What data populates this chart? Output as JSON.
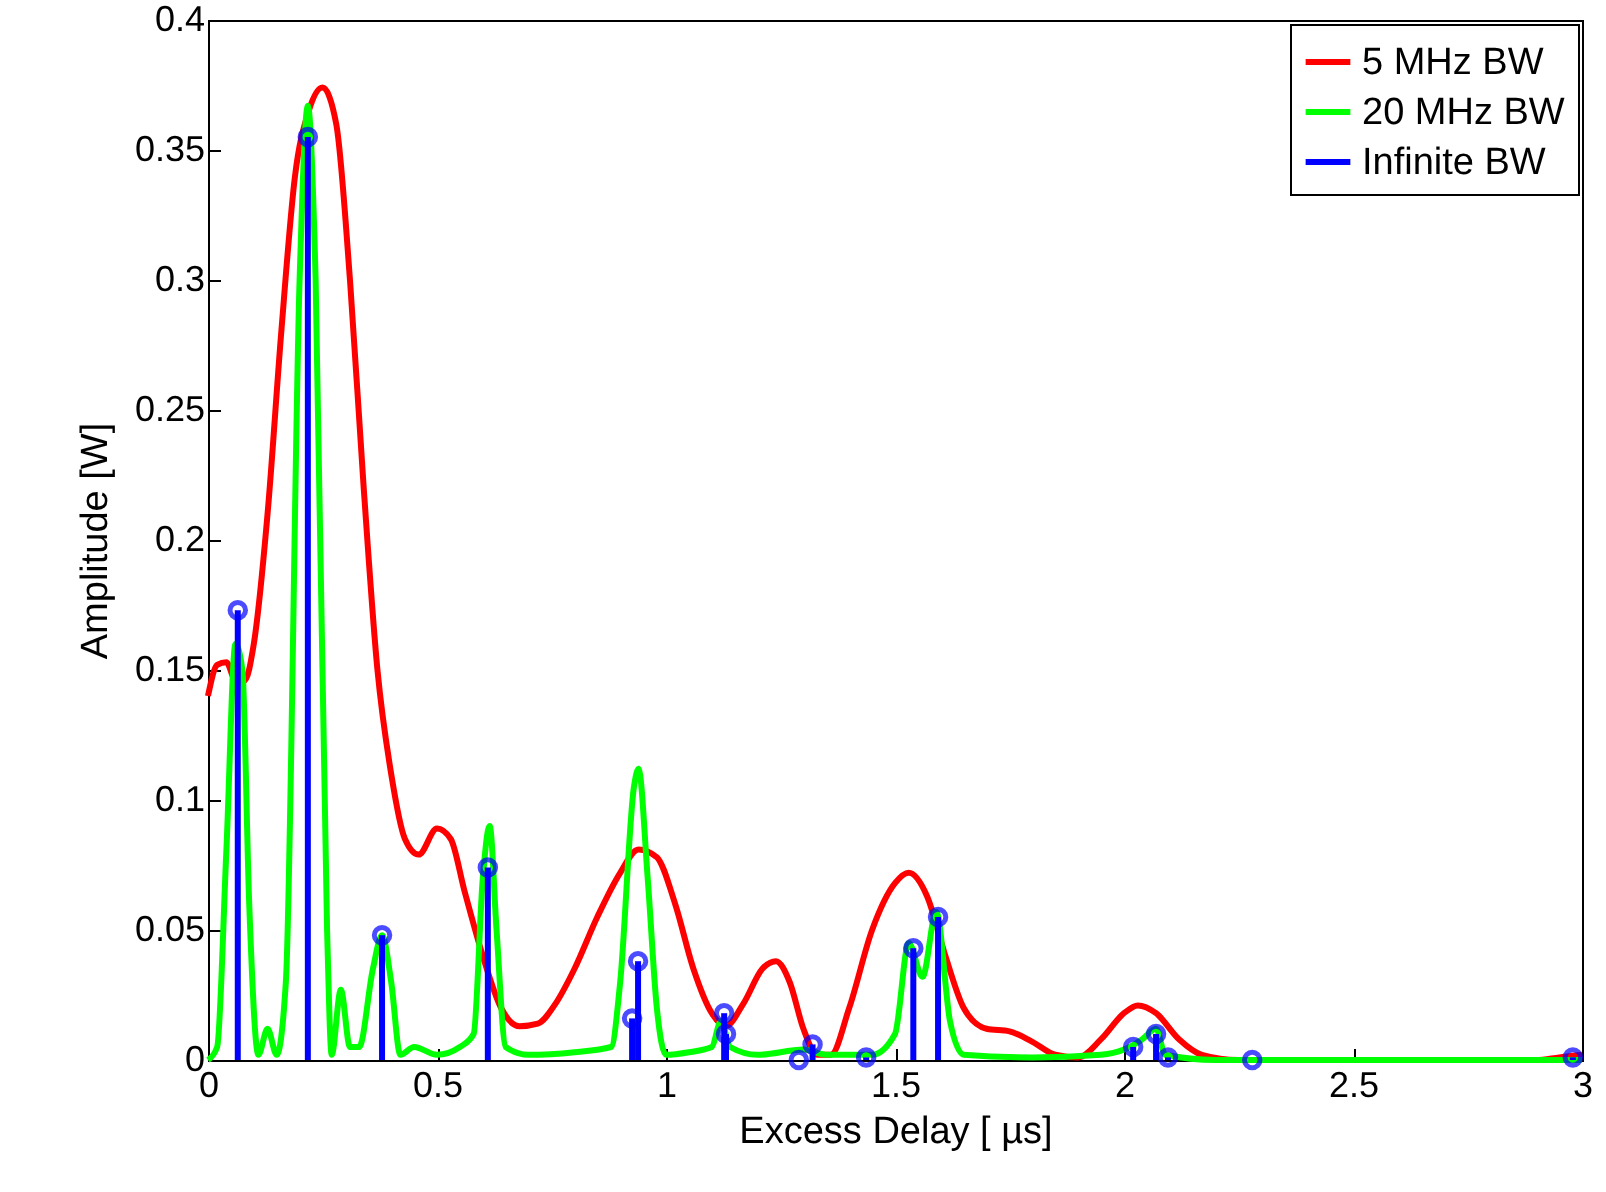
{
  "chart_data": {
    "type": "line",
    "xlabel": "Excess Delay  [ µs]",
    "ylabel": "Amplitude  [W]",
    "xlim": [
      0,
      3
    ],
    "xticks": [
      0,
      0.5,
      1,
      1.5,
      2,
      2.5,
      3
    ],
    "ylim": [
      0,
      0.4
    ],
    "yticks": [
      0,
      0.05,
      0.1,
      0.15,
      0.2,
      0.25,
      0.3,
      0.35,
      0.4
    ],
    "grid": false,
    "legend": "top right",
    "series": [
      {
        "name": "5 MHz BW",
        "color": "#ff0000",
        "x": [
          0,
          0.02,
          0.04,
          0.06,
          0.08,
          0.1,
          0.13,
          0.16,
          0.19,
          0.22,
          0.25,
          0.28,
          0.31,
          0.34,
          0.37,
          0.4,
          0.43,
          0.46,
          0.5,
          0.53,
          0.56,
          0.6,
          0.64,
          0.68,
          0.72,
          0.76,
          0.8,
          0.85,
          0.9,
          0.94,
          0.98,
          1.02,
          1.06,
          1.1,
          1.13,
          1.17,
          1.21,
          1.24,
          1.27,
          1.3,
          1.33,
          1.36,
          1.4,
          1.45,
          1.5,
          1.53,
          1.57,
          1.61,
          1.65,
          1.7,
          1.75,
          1.8,
          1.85,
          1.9,
          1.95,
          2.0,
          2.03,
          2.07,
          2.12,
          2.17,
          2.25,
          2.9,
          2.95,
          3.0
        ],
        "values": [
          0.14,
          0.152,
          0.153,
          0.146,
          0.146,
          0.16,
          0.21,
          0.28,
          0.34,
          0.365,
          0.374,
          0.36,
          0.3,
          0.22,
          0.15,
          0.11,
          0.085,
          0.079,
          0.089,
          0.085,
          0.065,
          0.04,
          0.02,
          0.013,
          0.014,
          0.022,
          0.035,
          0.055,
          0.072,
          0.081,
          0.078,
          0.06,
          0.035,
          0.018,
          0.013,
          0.022,
          0.035,
          0.038,
          0.03,
          0.012,
          0.002,
          0.002,
          0.02,
          0.05,
          0.068,
          0.072,
          0.063,
          0.04,
          0.02,
          0.012,
          0.011,
          0.007,
          0.002,
          0.001,
          0.008,
          0.018,
          0.021,
          0.018,
          0.008,
          0.002,
          0,
          0,
          0.001,
          0.002
        ]
      },
      {
        "name": "20 MHz BW",
        "color": "#00ff00",
        "x": [
          0,
          0.02,
          0.04,
          0.06,
          0.075,
          0.09,
          0.11,
          0.13,
          0.15,
          0.17,
          0.2,
          0.218,
          0.235,
          0.26,
          0.27,
          0.29,
          0.31,
          0.33,
          0.36,
          0.38,
          0.4,
          0.42,
          0.45,
          0.5,
          0.55,
          0.58,
          0.6,
          0.615,
          0.63,
          0.65,
          0.7,
          0.8,
          0.88,
          0.9,
          0.93,
          0.94,
          0.96,
          0.98,
          1.0,
          1.05,
          1.1,
          1.12,
          1.14,
          1.2,
          1.3,
          1.35,
          1.45,
          1.5,
          1.53,
          1.56,
          1.59,
          1.62,
          1.65,
          1.8,
          1.95,
          2.0,
          2.04,
          2.07,
          2.09,
          2.2,
          3.0
        ],
        "values": [
          0,
          0.005,
          0.08,
          0.16,
          0.15,
          0.06,
          0.002,
          0.012,
          0.002,
          0.03,
          0.3,
          0.367,
          0.3,
          0.05,
          0.002,
          0.027,
          0.005,
          0.005,
          0.035,
          0.048,
          0.03,
          0.002,
          0.005,
          0.002,
          0.005,
          0.01,
          0.07,
          0.09,
          0.05,
          0.005,
          0.002,
          0.003,
          0.005,
          0.03,
          0.105,
          0.112,
          0.07,
          0.02,
          0.002,
          0.003,
          0.005,
          0.015,
          0.005,
          0.002,
          0.004,
          0.002,
          0.002,
          0.01,
          0.045,
          0.032,
          0.057,
          0.015,
          0.002,
          0.001,
          0.002,
          0.004,
          0.008,
          0.012,
          0.002,
          0,
          0
        ]
      },
      {
        "name": "Infinite BW",
        "color": "#0000ff",
        "type": "lollipop",
        "marker": "circle",
        "x": [
          0.065,
          0.218,
          0.38,
          0.611,
          0.926,
          0.939,
          1.127,
          1.131,
          1.29,
          1.32,
          1.437,
          1.54,
          1.594,
          2.02,
          2.07,
          2.096,
          2.28,
          2.98
        ],
        "values": [
          0.173,
          0.355,
          0.048,
          0.074,
          0.016,
          0.038,
          0.018,
          0.01,
          0,
          0.006,
          0.001,
          0.043,
          0.055,
          0.005,
          0.01,
          0.001,
          0,
          0.001
        ]
      }
    ]
  }
}
